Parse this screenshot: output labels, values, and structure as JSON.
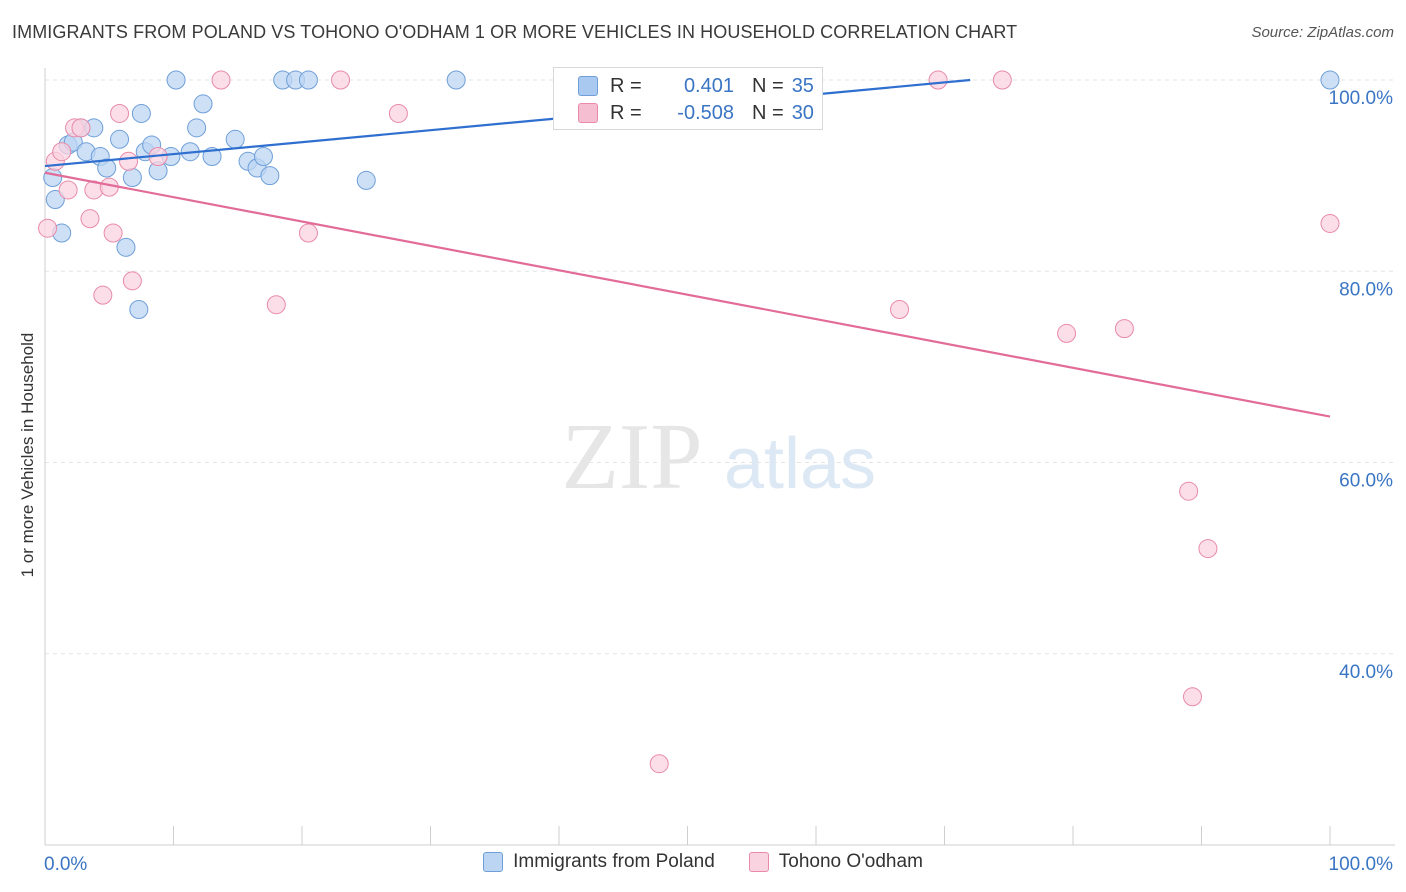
{
  "title": "IMMIGRANTS FROM POLAND VS TOHONO O'ODHAM 1 OR MORE VEHICLES IN HOUSEHOLD CORRELATION CHART",
  "source": "Source: ZipAtlas.com",
  "watermark": {
    "zip": "ZIP",
    "atlas": "atlas"
  },
  "stats": {
    "rows": [
      {
        "r_label": "R =",
        "r_value": "0.401",
        "n_label": "N =",
        "n_value": "35",
        "color": "#a9c9f0",
        "border": "#6f9fd8"
      },
      {
        "r_label": "R =",
        "r_value": "-0.508",
        "n_label": "N =",
        "n_value": "30",
        "color": "#f6bfd1",
        "border": "#e88aa8"
      }
    ]
  },
  "legend": [
    {
      "label": "Immigrants from Poland",
      "color": "#bcd5f3",
      "border": "#6f9fd8"
    },
    {
      "label": "Tohono O'odham",
      "color": "#f9d3e0",
      "border": "#e88aa8"
    }
  ],
  "chart_data": {
    "type": "scatter",
    "title": "IMMIGRANTS FROM POLAND VS TOHONO O'ODHAM 1 OR MORE VEHICLES IN HOUSEHOLD CORRELATION CHART",
    "xlabel": "",
    "ylabel": "1 or more Vehicles in Household",
    "xlim": [
      0,
      100
    ],
    "ylim": [
      20,
      102
    ],
    "x_tick_labels": [
      "0.0%",
      "100.0%"
    ],
    "y_ticks": [
      40,
      60,
      80,
      100
    ],
    "y_tick_labels": [
      "40.0%",
      "60.0%",
      "80.0%",
      "100.0%"
    ],
    "grid": true,
    "series": [
      {
        "name": "Immigrants from Poland",
        "color": "#6f9fd8",
        "fill": "#bcd5f3",
        "points": [
          [
            0.6,
            89.8
          ],
          [
            0.8,
            87.5
          ],
          [
            1.3,
            84.0
          ],
          [
            1.8,
            93.2
          ],
          [
            2.2,
            93.5
          ],
          [
            2.8,
            95.0
          ],
          [
            3.2,
            92.5
          ],
          [
            3.8,
            95.0
          ],
          [
            4.3,
            92.0
          ],
          [
            4.8,
            90.8
          ],
          [
            5.8,
            93.8
          ],
          [
            6.3,
            82.5
          ],
          [
            6.8,
            89.8
          ],
          [
            7.3,
            76.0
          ],
          [
            7.5,
            96.5
          ],
          [
            7.8,
            92.5
          ],
          [
            8.3,
            93.2
          ],
          [
            8.8,
            90.5
          ],
          [
            9.8,
            92.0
          ],
          [
            10.2,
            100.0
          ],
          [
            11.3,
            92.5
          ],
          [
            11.8,
            95.0
          ],
          [
            12.3,
            97.5
          ],
          [
            13.0,
            92.0
          ],
          [
            14.8,
            93.8
          ],
          [
            15.8,
            91.5
          ],
          [
            16.5,
            90.8
          ],
          [
            17.0,
            92.0
          ],
          [
            17.5,
            90.0
          ],
          [
            18.5,
            100.0
          ],
          [
            19.5,
            100.0
          ],
          [
            20.5,
            100.0
          ],
          [
            25.0,
            89.5
          ],
          [
            32.0,
            100.0
          ],
          [
            100.0,
            100.0
          ]
        ],
        "trend": {
          "x": [
            0,
            72
          ],
          "y": [
            91.0,
            100.0
          ]
        }
      },
      {
        "name": "Tohono O'odham",
        "color": "#e88aa8",
        "fill": "#f9d3e0",
        "points": [
          [
            0.2,
            84.5
          ],
          [
            0.8,
            91.5
          ],
          [
            1.3,
            92.5
          ],
          [
            1.8,
            88.5
          ],
          [
            2.3,
            95.0
          ],
          [
            2.8,
            95.0
          ],
          [
            3.5,
            85.5
          ],
          [
            3.8,
            88.5
          ],
          [
            4.5,
            77.5
          ],
          [
            5.0,
            88.8
          ],
          [
            5.3,
            84.0
          ],
          [
            5.8,
            96.5
          ],
          [
            6.5,
            91.5
          ],
          [
            6.8,
            79.0
          ],
          [
            8.8,
            92.0
          ],
          [
            13.7,
            100.0
          ],
          [
            18.0,
            76.5
          ],
          [
            20.5,
            84.0
          ],
          [
            23.0,
            100.0
          ],
          [
            27.5,
            96.5
          ],
          [
            47.8,
            28.5
          ],
          [
            66.5,
            76.0
          ],
          [
            69.5,
            100.0
          ],
          [
            74.5,
            100.0
          ],
          [
            79.5,
            73.5
          ],
          [
            84.0,
            74.0
          ],
          [
            89.0,
            57.0
          ],
          [
            89.3,
            35.5
          ],
          [
            90.5,
            51.0
          ],
          [
            100.0,
            85.0
          ]
        ],
        "trend": {
          "x": [
            0,
            100
          ],
          "y": [
            90.3,
            64.8
          ]
        }
      }
    ]
  }
}
